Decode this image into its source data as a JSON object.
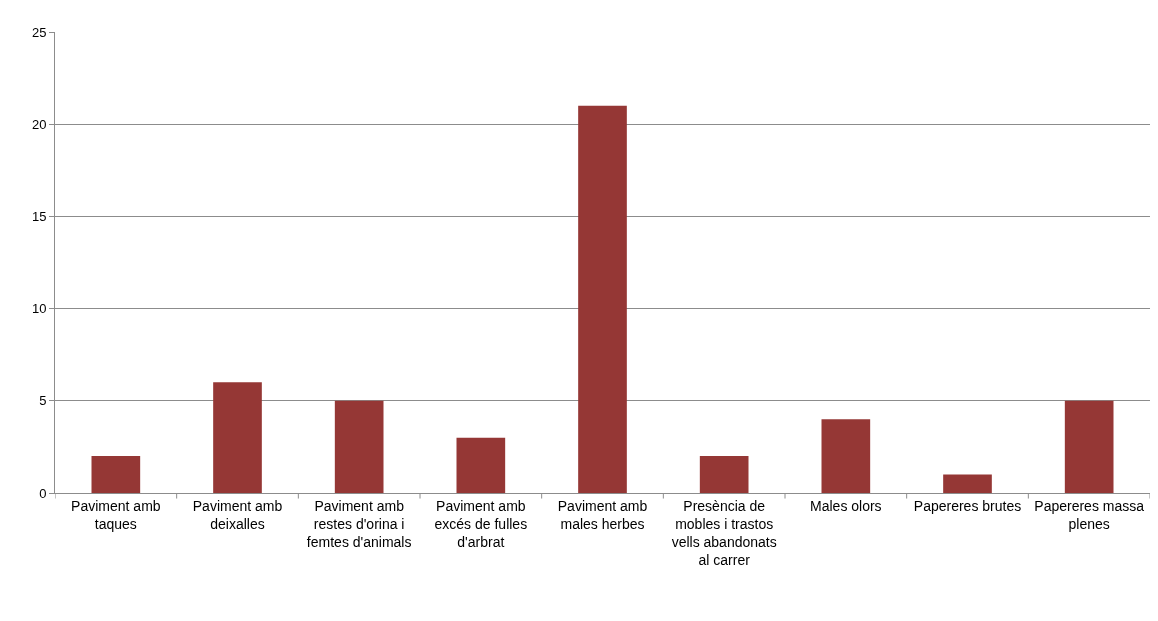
{
  "chart_data": {
    "type": "bar",
    "categories": [
      "Paviment amb taques",
      "Paviment amb deixalles",
      "Paviment amb restes d'orina i femtes d'animals",
      "Paviment amb excés de fulles d'arbrat",
      "Paviment amb males herbes",
      "Presència de mobles i trastos vells abandonats al carrer",
      "Males olors",
      "Papereres brutes",
      "Papereres massa plenes"
    ],
    "values": [
      2,
      6,
      5,
      3,
      21,
      2,
      4,
      1,
      5
    ],
    "color": "#953735",
    "ylim": [
      0,
      25
    ],
    "yticks": [
      0,
      5,
      10,
      15,
      20,
      25
    ],
    "grid": "y"
  }
}
